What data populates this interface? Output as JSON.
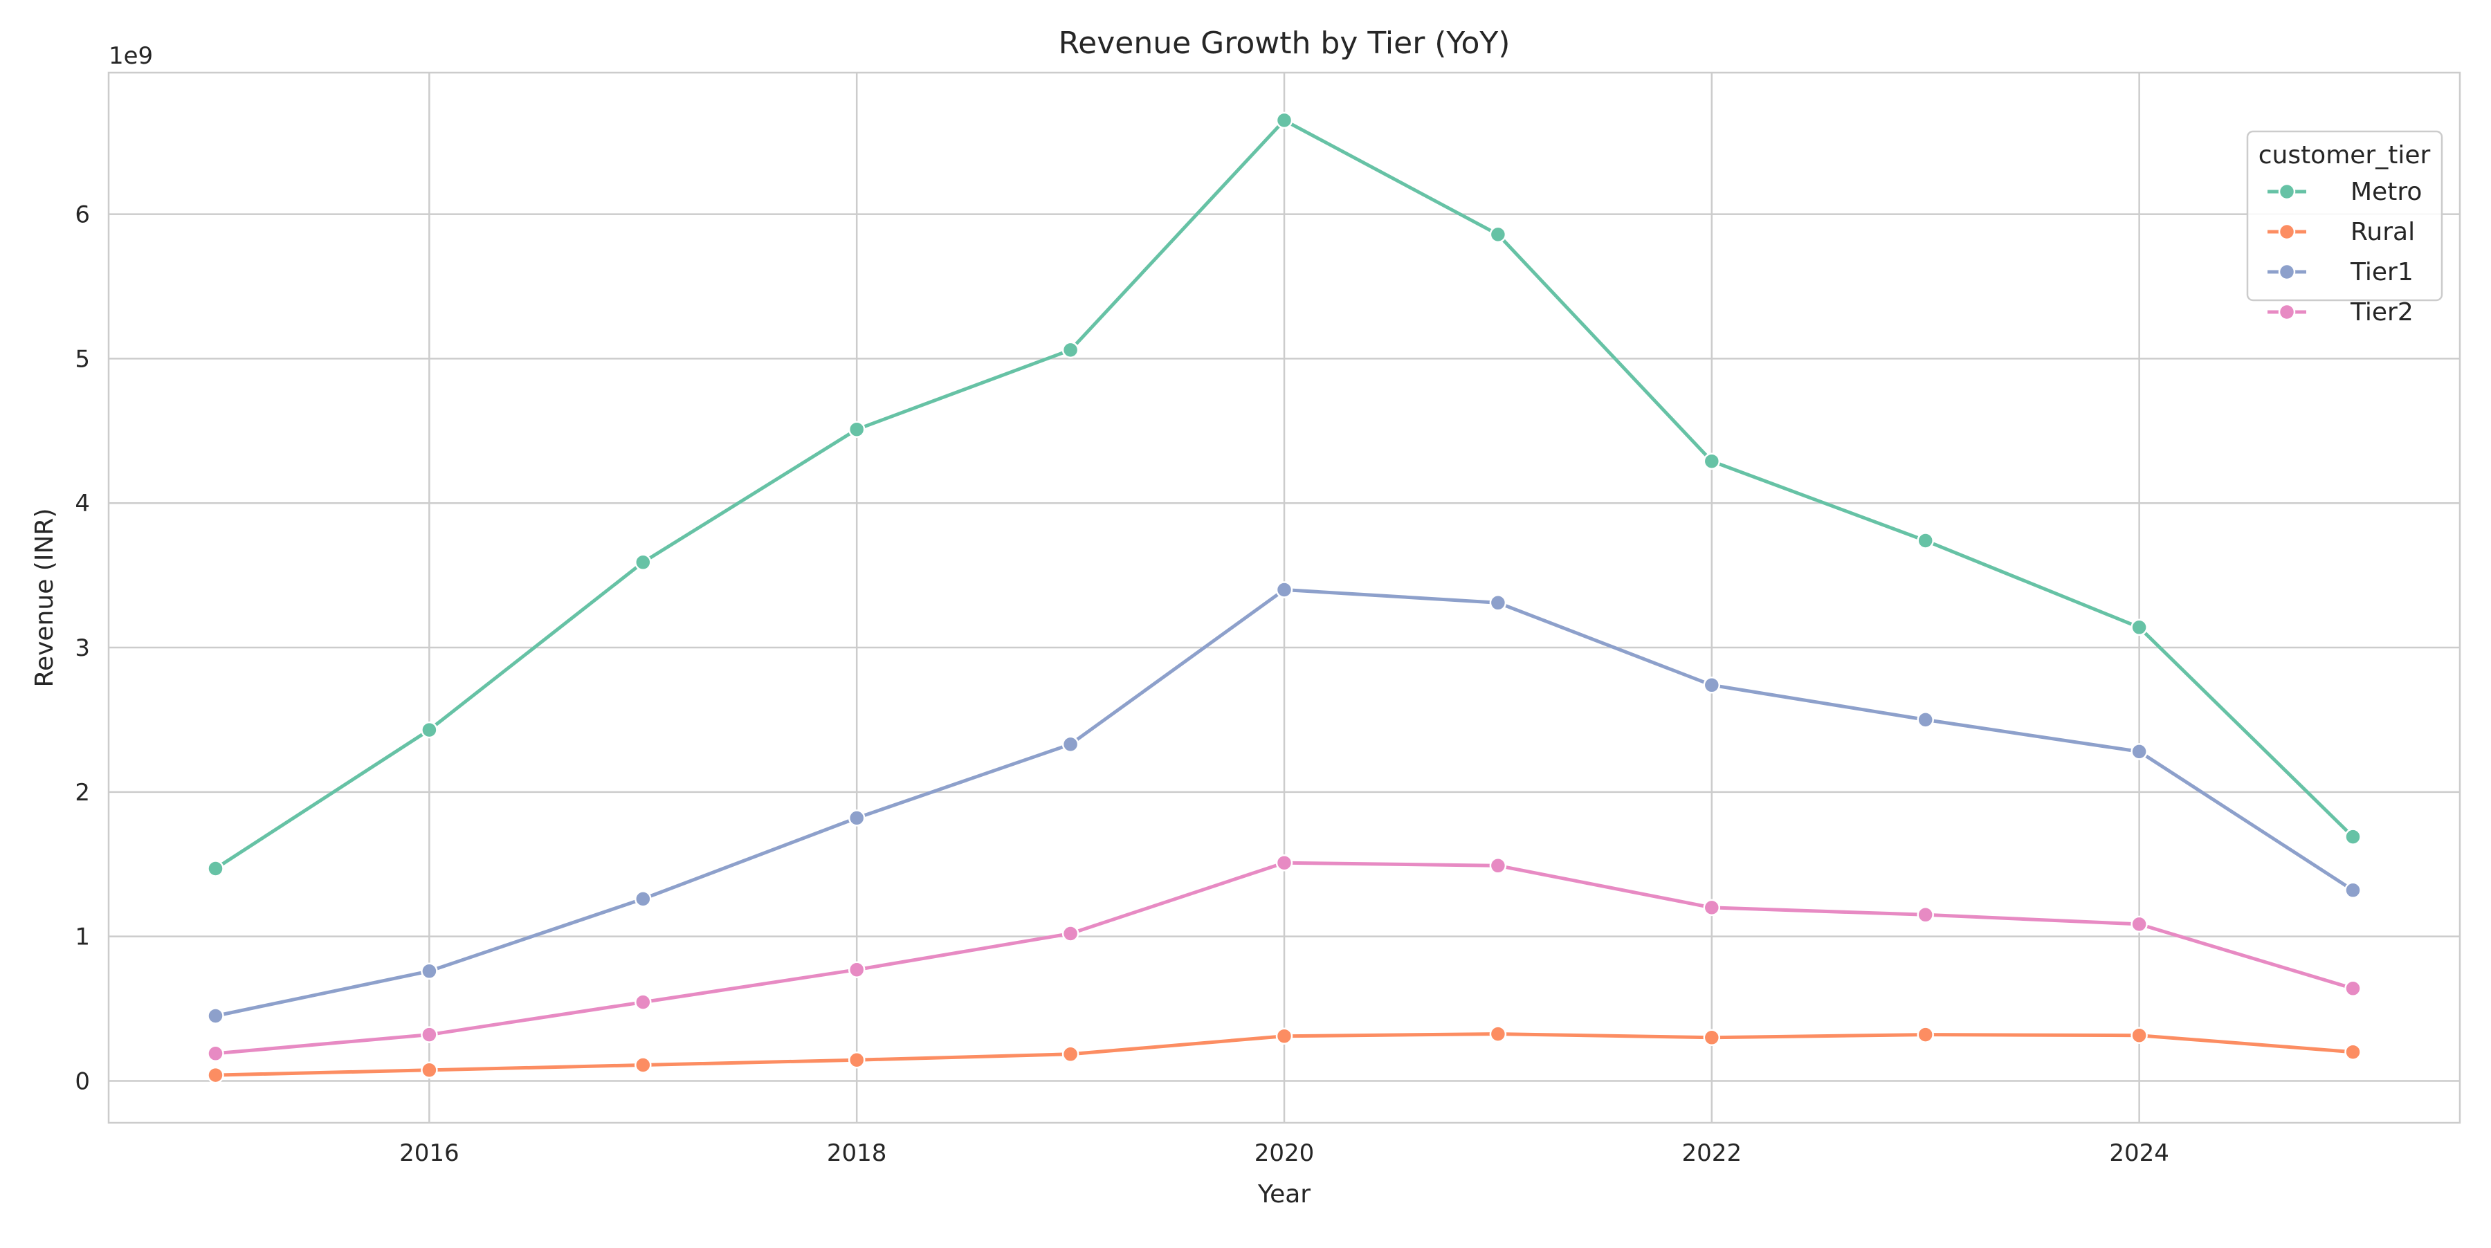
{
  "chart_data": {
    "type": "line",
    "title": "Revenue Growth by Tier (YoY)",
    "xlabel": "Year",
    "ylabel": "Revenue (INR)",
    "y_offset_text": "1e9",
    "y_scale_factor": 1000000000,
    "x": [
      2015,
      2016,
      2017,
      2018,
      2019,
      2020,
      2021,
      2022,
      2023,
      2024,
      2025
    ],
    "xlim": [
      2014.5,
      2025.5
    ],
    "ylim": [
      -290000000.0,
      6980000000.0
    ],
    "x_ticks": [
      2016,
      2018,
      2020,
      2022,
      2024
    ],
    "y_ticks": [
      0,
      1000000000,
      2000000000,
      3000000000,
      4000000000,
      5000000000,
      6000000000
    ],
    "x_tick_labels": [
      "2016",
      "2018",
      "2020",
      "2022",
      "2024"
    ],
    "y_tick_labels": [
      "0",
      "1",
      "2",
      "3",
      "4",
      "5",
      "6"
    ],
    "grid": true,
    "legend": {
      "title": "customer_tier",
      "placement": "top-right"
    },
    "series": [
      {
        "name": "Metro",
        "color": "#66c2a5",
        "values": [
          1470000000,
          2430000000,
          3590000000,
          4510000000,
          5060000000,
          6650000000,
          5860000000,
          4290000000,
          3740000000,
          3140000000,
          1690000000
        ]
      },
      {
        "name": "Rural",
        "color": "#fc8d62",
        "values": [
          40000000,
          75000000,
          110000000,
          145000000,
          185000000,
          310000000,
          325000000,
          300000000,
          320000000,
          315000000,
          200000000
        ]
      },
      {
        "name": "Tier1",
        "color": "#8da0cb",
        "values": [
          450000000,
          760000000,
          1260000000,
          1820000000,
          2330000000,
          3400000000,
          3310000000,
          2740000000,
          2500000000,
          2280000000,
          1320000000
        ]
      },
      {
        "name": "Tier2",
        "color": "#e78ac3",
        "values": [
          190000000,
          320000000,
          545000000,
          770000000,
          1020000000,
          1510000000,
          1490000000,
          1200000000,
          1150000000,
          1085000000,
          640000000
        ]
      }
    ]
  }
}
